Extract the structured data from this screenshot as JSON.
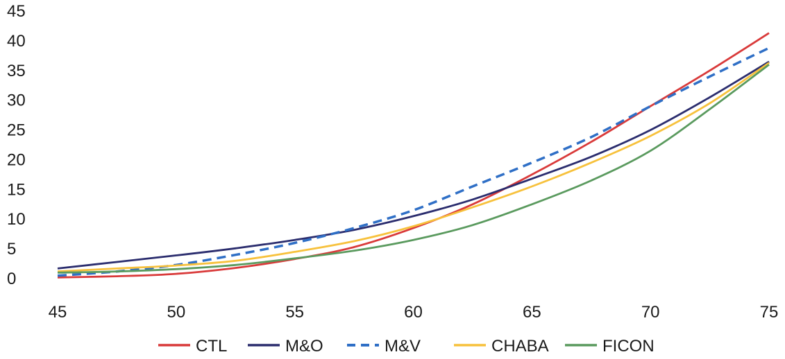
{
  "chart_data": {
    "type": "line",
    "title": "",
    "xlabel": "",
    "ylabel": "",
    "xlim": [
      45,
      75
    ],
    "ylim": [
      0,
      45
    ],
    "x_ticks": [
      45,
      50,
      55,
      60,
      65,
      70,
      75
    ],
    "y_ticks": [
      0,
      5,
      10,
      15,
      20,
      25,
      30,
      35,
      40,
      45
    ],
    "x_tick_labels": [
      "45",
      "50",
      "55",
      "60",
      "65",
      "70",
      "75"
    ],
    "y_tick_labels": [
      "0",
      "5",
      "10",
      "15",
      "20",
      "25",
      "30",
      "35",
      "40",
      "45"
    ],
    "grid": false,
    "legend_position": "bottom",
    "x": [
      45,
      47.5,
      50,
      52.5,
      55,
      57.5,
      60,
      62.5,
      65,
      67.5,
      70,
      72.5,
      75
    ],
    "series": [
      {
        "name": "CTL",
        "color": "#d93a3a",
        "dash": "solid",
        "values": [
          0.2,
          0.4,
          0.8,
          1.8,
          3.3,
          5.3,
          8.5,
          12.5,
          17.5,
          23.0,
          29.0,
          35.0,
          41.3
        ]
      },
      {
        "name": "M&O",
        "color": "#2b2d6e",
        "dash": "solid",
        "values": [
          1.7,
          2.8,
          3.9,
          5.1,
          6.5,
          8.2,
          10.5,
          13.3,
          16.8,
          20.5,
          25.0,
          30.5,
          36.5
        ]
      },
      {
        "name": "M&V",
        "color": "#2f6fc6",
        "dash": "dashed",
        "values": [
          0.5,
          1.2,
          2.3,
          4.0,
          6.0,
          8.5,
          11.5,
          15.5,
          19.5,
          23.8,
          29.0,
          34.0,
          38.8
        ]
      },
      {
        "name": "CHABA",
        "color": "#f7c13c",
        "dash": "solid",
        "values": [
          1.2,
          1.7,
          2.2,
          3.0,
          4.5,
          6.3,
          8.8,
          12.0,
          15.5,
          19.5,
          24.0,
          29.5,
          36.3
        ]
      },
      {
        "name": "FICON",
        "color": "#5a9a5e",
        "dash": "solid",
        "values": [
          1.0,
          1.2,
          1.6,
          2.3,
          3.4,
          4.7,
          6.5,
          9.0,
          12.5,
          16.5,
          21.5,
          28.5,
          36.0
        ]
      }
    ]
  }
}
